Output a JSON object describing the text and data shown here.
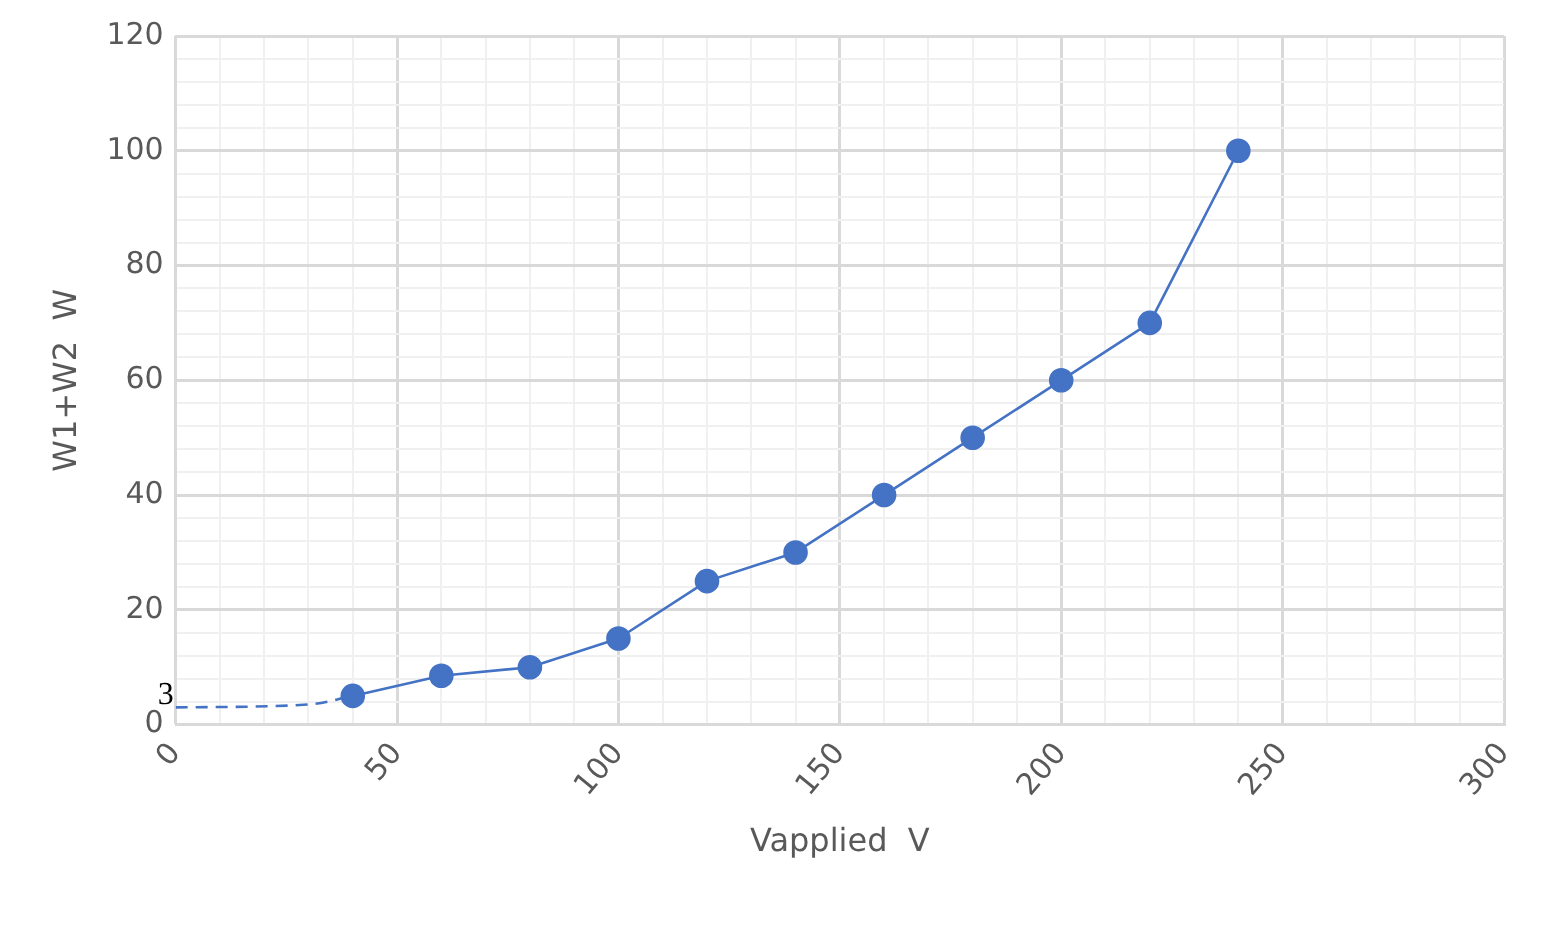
{
  "chart_data": {
    "type": "line",
    "xlabel": "Vapplied  V",
    "ylabel": "W1+W2  W",
    "series": [
      {
        "color": "#4472c4",
        "x": [
          40,
          60,
          80,
          100,
          120,
          140,
          160,
          180,
          200,
          220,
          240
        ],
        "values": [
          5,
          8.5,
          10,
          15,
          25,
          30,
          40,
          50,
          60,
          70,
          100
        ],
        "marker": "circle",
        "line_style": "solid"
      },
      {
        "color": "#4472c4",
        "x": [
          0,
          30,
          40
        ],
        "values": [
          3,
          3.5,
          5
        ],
        "marker": "none",
        "line_style": "dashed"
      }
    ],
    "xlim": [
      0,
      300
    ],
    "xticks": [
      0,
      {
        "value": 10,
        "label": null
      },
      {
        "value": 20,
        "label": null
      },
      {
        "value": 30,
        "label": null
      },
      {
        "value": 40,
        "label": null
      },
      50,
      {
        "value": 60,
        "label": null
      },
      {
        "value": 70,
        "label": null
      },
      {
        "value": 80,
        "label": null
      },
      {
        "value": 90,
        "label": null
      },
      100,
      {
        "value": 110,
        "label": null
      },
      {
        "value": 120,
        "label": null
      },
      {
        "value": 130,
        "label": null
      },
      {
        "value": 140,
        "label": null
      },
      150,
      {
        "value": 160,
        "label": null
      },
      {
        "value": 170,
        "label": null
      },
      {
        "value": 180,
        "label": null
      },
      {
        "value": 190,
        "label": null
      },
      200,
      {
        "value": 210,
        "label": null
      },
      {
        "value": 220,
        "label": null
      },
      {
        "value": 230,
        "label": null
      },
      {
        "value": 240,
        "label": null
      },
      250,
      {
        "value": 260,
        "label": null
      },
      {
        "value": 270,
        "label": null
      },
      {
        "value": 280,
        "label": null
      },
      {
        "value": 290,
        "label": null
      },
      300
    ],
    "ylim": [
      0,
      120
    ],
    "yticks": [
      0,
      {
        "value": 4,
        "label": null
      },
      {
        "value": 8,
        "label": null
      },
      {
        "value": 12,
        "label": null
      },
      {
        "value": 16,
        "label": null
      },
      20,
      {
        "value": 24,
        "label": null
      },
      {
        "value": 28,
        "label": null
      },
      {
        "value": 32,
        "label": null
      },
      {
        "value": 36,
        "label": null
      },
      40,
      {
        "value": 44,
        "label": null
      },
      {
        "value": 48,
        "label": null
      },
      {
        "value": 52,
        "label": null
      },
      {
        "value": 56,
        "label": null
      },
      60,
      {
        "value": 64,
        "label": null
      },
      {
        "value": 68,
        "label": null
      },
      {
        "value": 72,
        "label": null
      },
      {
        "value": 76,
        "label": null
      },
      80,
      {
        "value": 84,
        "label": null
      },
      {
        "value": 88,
        "label": null
      },
      {
        "value": 92,
        "label": null
      },
      {
        "value": 96,
        "label": null
      },
      100,
      {
        "value": 104,
        "label": null
      },
      {
        "value": 108,
        "label": null
      },
      {
        "value": 112,
        "label": null
      },
      {
        "value": 116,
        "label": null
      },
      120
    ],
    "grid": true,
    "legend": false,
    "annotations": [
      {
        "text": "3",
        "x": 0,
        "y": 3
      }
    ]
  }
}
